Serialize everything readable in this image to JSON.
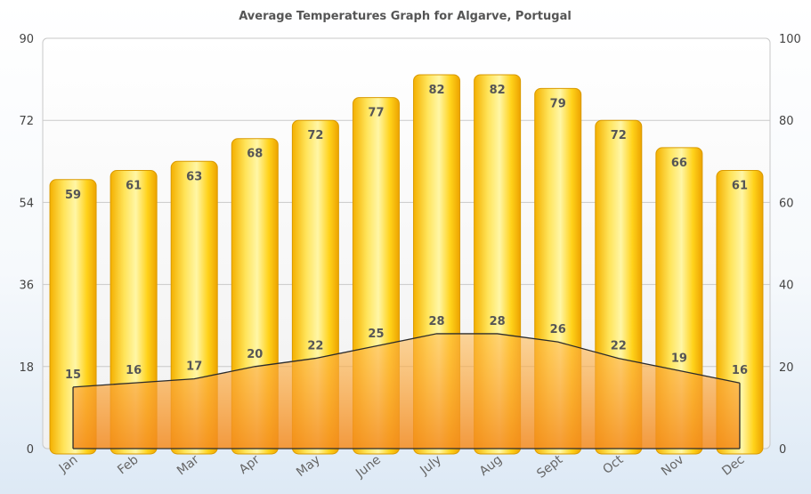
{
  "chart_data": {
    "type": "bar",
    "title": "Average Temperatures Graph for Algarve, Portugal",
    "categories": [
      "Jan",
      "Feb",
      "Mar",
      "Apr",
      "May",
      "June",
      "July",
      "Aug",
      "Sept",
      "Oct",
      "Nov",
      "Dec"
    ],
    "series": [
      {
        "type": "bar",
        "axis": "left",
        "values": [
          59,
          61,
          63,
          68,
          72,
          77,
          82,
          82,
          79,
          72,
          66,
          61
        ]
      },
      {
        "type": "area",
        "axis": "right",
        "values": [
          15,
          16,
          17,
          20,
          22,
          25,
          28,
          28,
          26,
          22,
          19,
          16
        ]
      }
    ],
    "y_left": {
      "ylim": [
        0,
        90
      ],
      "ticks": [
        0,
        18,
        36,
        54,
        72,
        90
      ]
    },
    "y_right": {
      "ylim": [
        0,
        100
      ],
      "ticks": [
        0,
        20,
        40,
        60,
        80,
        100
      ]
    },
    "grid": true,
    "legend": "none",
    "colors": {
      "bar_light": "#fff7a0",
      "bar_mid": "#ffd21a",
      "bar_dark": "#f2a900",
      "area": "#f79a2e",
      "area_line": "#2b2b2b"
    }
  }
}
